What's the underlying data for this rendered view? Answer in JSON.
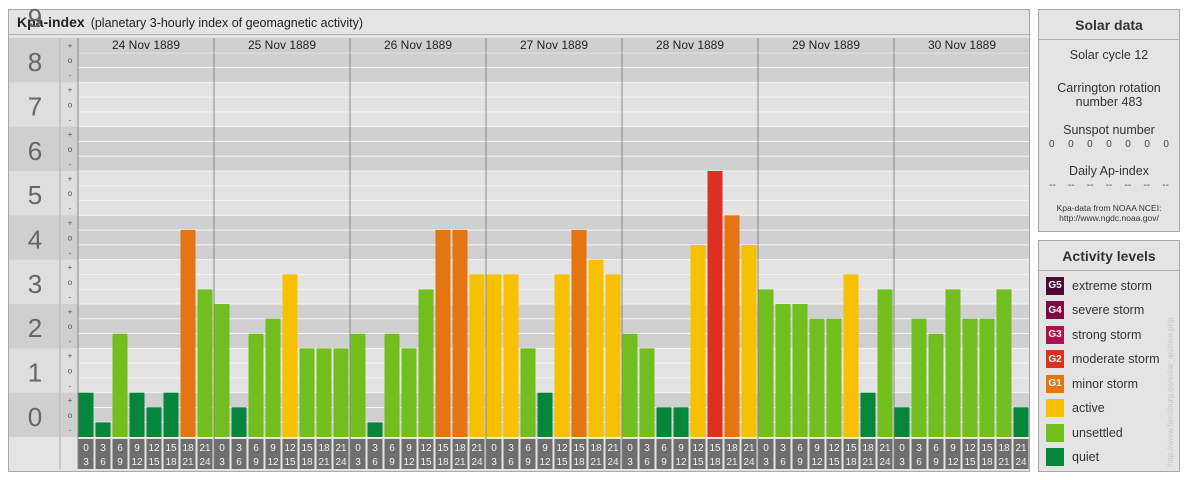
{
  "title": {
    "main": "Kpa-index",
    "subtitle": "(planetary 3-hourly index of geomagnetic activity)"
  },
  "colors": {
    "quiet": "#06863b",
    "unsettled": "#72be1e",
    "active": "#f7c100",
    "G1": "#e57511",
    "G2": "#dc3121",
    "G3": "#b10e4c",
    "G4": "#7b0a45",
    "G5": "#4b0a35"
  },
  "chart_data": {
    "type": "bar",
    "days": [
      "24 Nov 1889",
      "25 Nov 1889",
      "26 Nov 1889",
      "27 Nov 1889",
      "28 Nov 1889",
      "29 Nov 1889",
      "30 Nov 1889"
    ],
    "interval_labels": [
      [
        "0",
        "3"
      ],
      [
        "3",
        "6"
      ],
      [
        "6",
        "9"
      ],
      [
        "9",
        "12"
      ],
      [
        "12",
        "15"
      ],
      [
        "15",
        "18"
      ],
      [
        "18",
        "21"
      ],
      [
        "21",
        "24"
      ]
    ],
    "ylim": [
      0,
      9
    ],
    "y_ticks": [
      "0",
      "1",
      "2",
      "3",
      "4",
      "5",
      "6",
      "7",
      "8",
      "9"
    ],
    "minor_ticks": [
      "+",
      "o",
      "-"
    ],
    "values": [
      [
        1.0,
        0.33,
        2.33,
        1.0,
        0.67,
        1.0,
        4.67,
        3.33
      ],
      [
        3.0,
        0.67,
        2.33,
        2.67,
        3.67,
        2.0,
        2.0,
        2.0
      ],
      [
        2.33,
        0.33,
        2.33,
        2.0,
        3.33,
        4.67,
        4.67,
        3.67
      ],
      [
        3.67,
        3.67,
        2.0,
        1.0,
        3.67,
        4.67,
        4.0,
        3.67
      ],
      [
        2.33,
        2.0,
        0.67,
        0.67,
        4.33,
        6.0,
        5.0,
        4.33
      ],
      [
        3.33,
        3.0,
        3.0,
        2.67,
        2.67,
        3.67,
        1.0,
        3.33
      ],
      [
        0.67,
        2.67,
        2.33,
        3.33,
        2.67,
        2.67,
        3.33,
        0.67
      ]
    ]
  },
  "solar": {
    "heading": "Solar data",
    "cycle": "Solar cycle 12",
    "carrington_1": "Carrington rotation",
    "carrington_2": "number 483",
    "sunspot_label": "Sunspot number",
    "sunspot_values": [
      "0",
      "0",
      "0",
      "0",
      "0",
      "0",
      "0"
    ],
    "ap_label": "Daily Ap-index",
    "ap_values": [
      "--",
      "--",
      "--",
      "--",
      "--",
      "--",
      "--"
    ],
    "source_1": "Kpa-data from NOAA NCEI:",
    "source_2": "http://www.ngdc.noaa.gov/"
  },
  "activity": {
    "heading": "Activity levels",
    "items": [
      {
        "badge": "G5",
        "label": "extreme storm",
        "color": "#4b0a35"
      },
      {
        "badge": "G4",
        "label": "severe storm",
        "color": "#7b0a45"
      },
      {
        "badge": "G3",
        "label": "strong storm",
        "color": "#b10e4c"
      },
      {
        "badge": "G2",
        "label": "moderate storm",
        "color": "#dc3121"
      },
      {
        "badge": "G1",
        "label": "minor storm",
        "color": "#e57511"
      },
      {
        "badge": "",
        "label": "active",
        "color": "#f7c100"
      },
      {
        "badge": "",
        "label": "unsettled",
        "color": "#72be1e"
      },
      {
        "badge": "",
        "label": "quiet",
        "color": "#06863b"
      }
    ]
  },
  "watermark": "http://www.flensburg.de/solar_archive.php"
}
